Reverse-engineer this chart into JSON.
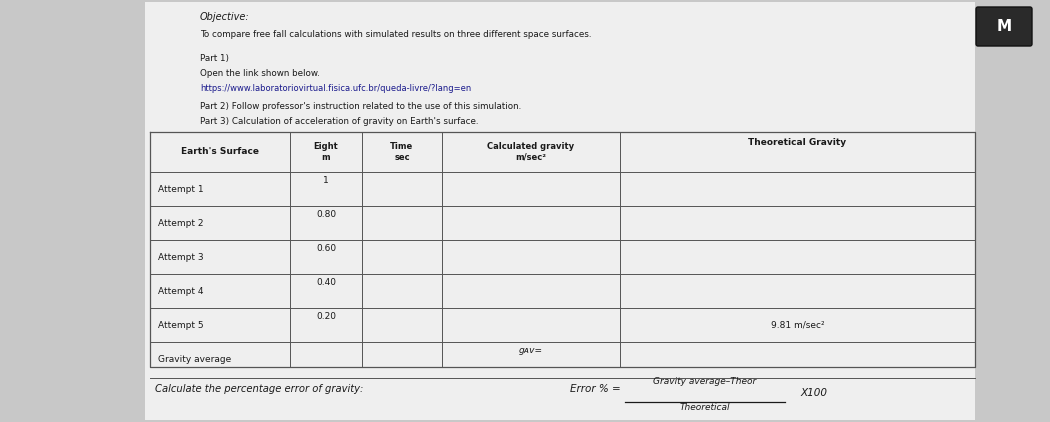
{
  "background_color": "#c8c8c8",
  "paper_color": "#efefef",
  "title_objective": "Objective:",
  "line1": "To compare free fall calculations with simulated results on three different space surfaces.",
  "part1": "Part 1)",
  "part1_open": "Open the link shown below.",
  "part1_link": "https://www.laboratoriovirtual.fisica.ufc.br/queda-livre/?lang=en",
  "part2": "Part 2) Follow professor's instruction related to the use of this simulation.",
  "part3": "Part 3) Calculation of acceleration of gravity on Earth's surface.",
  "attempts": [
    "Attempt 1",
    "Attempt 2",
    "Attempt 3",
    "Attempt 4",
    "Attempt 5"
  ],
  "heights": [
    "1",
    "0.80",
    "0.60",
    "0.40",
    "0.20"
  ],
  "theor_gravity": [
    "",
    "",
    "",
    "",
    "9.81 m/sec²"
  ],
  "gravity_avg_label": "Gravity average",
  "gav_label": "gᴀv=",
  "header_col0": "Earth's Surface",
  "header_col1": "Eight\nm",
  "header_col2": "Time\nsec",
  "header_col3": "Calculated gravity\nm/sec²",
  "header_col4": "Theoretical Gravity",
  "error_prefix": "Calculate the percentage error of gravity:",
  "error_eq": "Error % =",
  "error_num": "Gravity average–Theor",
  "error_den": "Theoretical",
  "error_x100": "X100",
  "corner_label": "M",
  "text_color": "#1a1a1a",
  "link_color": "#1a1a8c",
  "line_color": "#555555"
}
